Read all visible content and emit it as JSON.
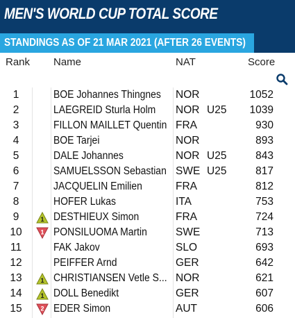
{
  "title": "MEN'S WORLD CUP TOTAL SCORE",
  "subtitle": "STANDINGS AS OF 21 MAR 2021 (AFTER 26 EVENTS)",
  "columns": {
    "rank": "Rank",
    "name": "Name",
    "nat": "NAT",
    "score": "Score"
  },
  "colors": {
    "banner": "#0a3b6b",
    "subtitle": "#2aa6e0",
    "up": "#b5c42c",
    "down": "#e0505a"
  },
  "rows": [
    {
      "rank": "1",
      "name": "BOE Johannes Thingnes",
      "nat": "NOR",
      "cat": "",
      "score": "1052",
      "trend": "",
      "trend_value": ""
    },
    {
      "rank": "2",
      "name": "LAEGREID Sturla Holm",
      "nat": "NOR",
      "cat": "U25",
      "score": "1039",
      "trend": "",
      "trend_value": ""
    },
    {
      "rank": "3",
      "name": "FILLON MAILLET Quentin",
      "nat": "FRA",
      "cat": "",
      "score": "930",
      "trend": "",
      "trend_value": ""
    },
    {
      "rank": "4",
      "name": "BOE Tarjei",
      "nat": "NOR",
      "cat": "",
      "score": "893",
      "trend": "",
      "trend_value": ""
    },
    {
      "rank": "5",
      "name": "DALE Johannes",
      "nat": "NOR",
      "cat": "U25",
      "score": "843",
      "trend": "",
      "trend_value": ""
    },
    {
      "rank": "6",
      "name": "SAMUELSSON Sebastian",
      "nat": "SWE",
      "cat": "U25",
      "score": "817",
      "trend": "",
      "trend_value": ""
    },
    {
      "rank": "7",
      "name": "JACQUELIN Emilien",
      "nat": "FRA",
      "cat": "",
      "score": "812",
      "trend": "",
      "trend_value": ""
    },
    {
      "rank": "8",
      "name": "HOFER Lukas",
      "nat": "ITA",
      "cat": "",
      "score": "753",
      "trend": "",
      "trend_value": ""
    },
    {
      "rank": "9",
      "name": "DESTHIEUX Simon",
      "nat": "FRA",
      "cat": "",
      "score": "724",
      "trend": "up",
      "trend_value": "1"
    },
    {
      "rank": "10",
      "name": "PONSILUOMA Martin",
      "nat": "SWE",
      "cat": "",
      "score": "713",
      "trend": "down",
      "trend_value": "1"
    },
    {
      "rank": "11",
      "name": "FAK Jakov",
      "nat": "SLO",
      "cat": "",
      "score": "693",
      "trend": "",
      "trend_value": ""
    },
    {
      "rank": "12",
      "name": "PEIFFER Arnd",
      "nat": "GER",
      "cat": "",
      "score": "642",
      "trend": "",
      "trend_value": ""
    },
    {
      "rank": "13",
      "name": "CHRISTIANSEN Vetle S...",
      "nat": "NOR",
      "cat": "",
      "score": "621",
      "trend": "up",
      "trend_value": "1"
    },
    {
      "rank": "14",
      "name": "DOLL Benedikt",
      "nat": "GER",
      "cat": "",
      "score": "607",
      "trend": "up",
      "trend_value": "1"
    },
    {
      "rank": "15",
      "name": "EDER Simon",
      "nat": "AUT",
      "cat": "",
      "score": "606",
      "trend": "down",
      "trend_value": "2"
    }
  ]
}
